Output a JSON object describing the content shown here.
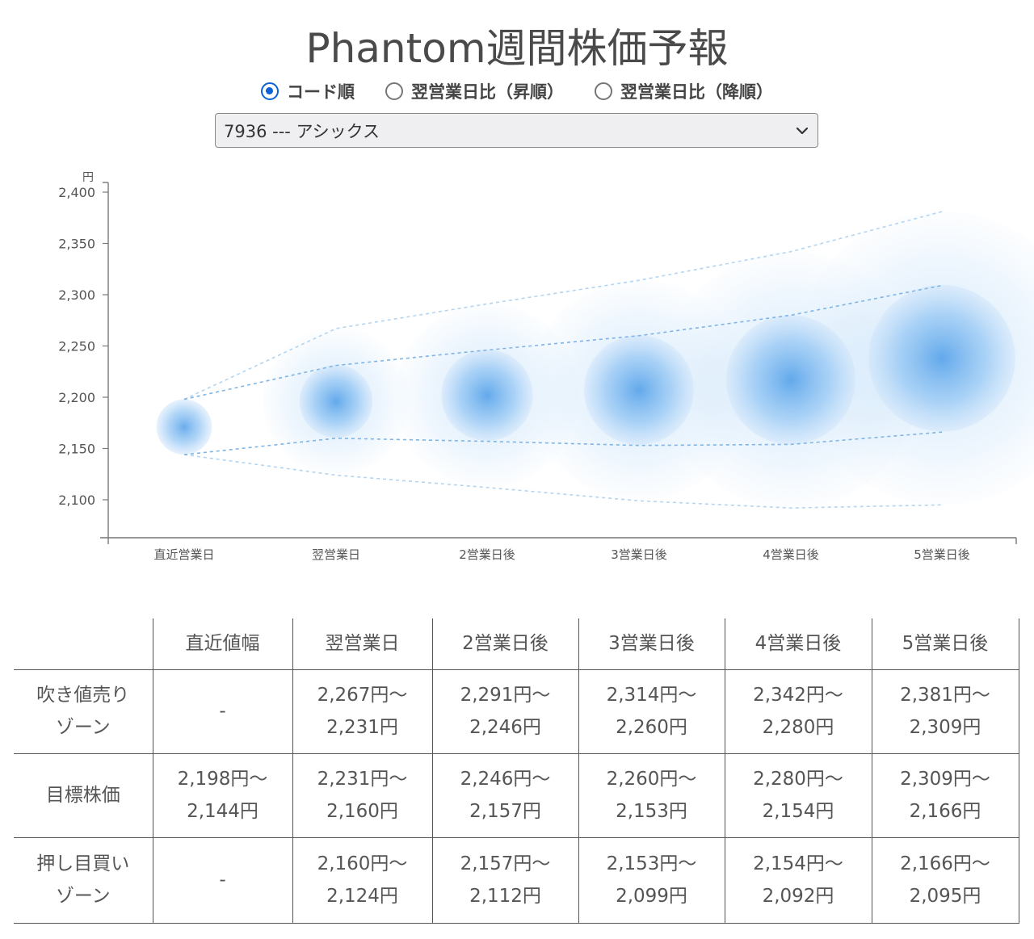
{
  "title": "Phantom週間株価予報",
  "sort_options": [
    {
      "label": "コード順",
      "checked": true
    },
    {
      "label": "翌営業日比（昇順）",
      "checked": false
    },
    {
      "label": "翌営業日比（降順）",
      "checked": false
    }
  ],
  "stock_select": {
    "value": "7936 --- アシックス"
  },
  "chart_data": {
    "type": "bubble-range",
    "ylabel": "円",
    "ylim": [
      2060,
      2400
    ],
    "yticks": [
      2100,
      2150,
      2200,
      2250,
      2300,
      2350,
      2400
    ],
    "ytick_labels": [
      "2,100",
      "2,150",
      "2,200",
      "2,250",
      "2,300",
      "2,350",
      "2,400"
    ],
    "categories": [
      "直近営業日",
      "翌営業日",
      "2営業日後",
      "3営業日後",
      "4営業日後",
      "5営業日後"
    ],
    "center": [
      2171,
      2196,
      2202,
      2207,
      2217,
      2238
    ],
    "target_range": [
      [
        2144,
        2198
      ],
      [
        2160,
        2231
      ],
      [
        2157,
        2246
      ],
      [
        2153,
        2260
      ],
      [
        2154,
        2280
      ],
      [
        2166,
        2309
      ]
    ],
    "outer_range": [
      [
        2144,
        2198
      ],
      [
        2124,
        2267
      ],
      [
        2112,
        2291
      ],
      [
        2099,
        2314
      ],
      [
        2092,
        2342
      ],
      [
        2095,
        2381
      ]
    ],
    "grid": false
  },
  "table": {
    "headers": [
      "",
      "直近値幅",
      "翌営業日",
      "2営業日後",
      "3営業日後",
      "4営業日後",
      "5営業日後"
    ],
    "rows": [
      {
        "label_lines": [
          "吹き値売り",
          "ゾーン"
        ],
        "cells": [
          [
            "-"
          ],
          [
            "2,267円～",
            "2,231円"
          ],
          [
            "2,291円～",
            "2,246円"
          ],
          [
            "2,314円～",
            "2,260円"
          ],
          [
            "2,342円～",
            "2,280円"
          ],
          [
            "2,381円～",
            "2,309円"
          ]
        ]
      },
      {
        "label_lines": [
          "目標株価"
        ],
        "cells": [
          [
            "2,198円～",
            "2,144円"
          ],
          [
            "2,231円～",
            "2,160円"
          ],
          [
            "2,246円～",
            "2,157円"
          ],
          [
            "2,260円～",
            "2,153円"
          ],
          [
            "2,280円～",
            "2,154円"
          ],
          [
            "2,309円～",
            "2,166円"
          ]
        ]
      },
      {
        "label_lines": [
          "押し目買い",
          "ゾーン"
        ],
        "cells": [
          [
            "-"
          ],
          [
            "2,160円～",
            "2,124円"
          ],
          [
            "2,157円～",
            "2,112円"
          ],
          [
            "2,153円～",
            "2,099円"
          ],
          [
            "2,154円～",
            "2,092円"
          ],
          [
            "2,166円～",
            "2,095円"
          ]
        ]
      }
    ]
  }
}
